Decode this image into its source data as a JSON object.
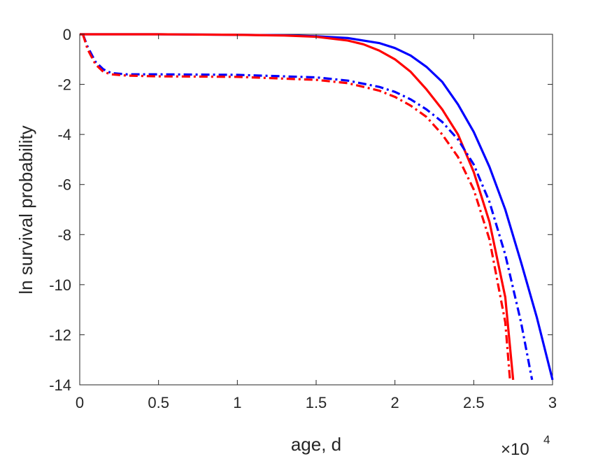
{
  "chart_data": {
    "type": "line",
    "title": "",
    "xlabel": "age, d",
    "ylabel": "ln survival probability",
    "x_multiplier_label": "×10",
    "x_multiplier_exponent": "4",
    "xlim": [
      0,
      30000
    ],
    "ylim": [
      -14,
      0
    ],
    "xticks": [
      0,
      5000,
      10000,
      15000,
      20000,
      25000,
      30000
    ],
    "xtick_labels": [
      "0",
      "0.5",
      "1",
      "1.5",
      "2",
      "2.5",
      "3"
    ],
    "yticks": [
      0,
      -2,
      -4,
      -6,
      -8,
      -10,
      -12,
      -14
    ],
    "ytick_labels": [
      "0",
      "-2",
      "-4",
      "-6",
      "-8",
      "-10",
      "-12",
      "-14"
    ],
    "grid": false,
    "series": [
      {
        "color": "#0000ff",
        "style": "solid",
        "x": [
          0,
          5000,
          10000,
          13000,
          15000,
          17000,
          19000,
          20000,
          21000,
          22000,
          23000,
          24000,
          25000,
          26000,
          27000,
          28000,
          29000,
          30000
        ],
        "y": [
          0,
          0,
          -0.02,
          -0.04,
          -0.08,
          -0.15,
          -0.35,
          -0.55,
          -0.85,
          -1.3,
          -1.9,
          -2.8,
          -3.9,
          -5.3,
          -7.0,
          -9.1,
          -11.3,
          -13.8
        ]
      },
      {
        "color": "#ff0000",
        "style": "solid",
        "x": [
          0,
          5000,
          10000,
          13000,
          15000,
          17000,
          18000,
          19000,
          20000,
          21000,
          22000,
          23000,
          24000,
          25000,
          26000,
          27000,
          27500
        ],
        "y": [
          0,
          0,
          -0.02,
          -0.05,
          -0.1,
          -0.25,
          -0.4,
          -0.65,
          -1.0,
          -1.5,
          -2.2,
          -3.0,
          -4.0,
          -5.5,
          -7.5,
          -10.5,
          -13.8
        ]
      },
      {
        "color": "#0000ff",
        "style": "dashdot",
        "x": [
          200,
          500,
          1000,
          1500,
          2000,
          3000,
          5000,
          10000,
          15000,
          17000,
          19000,
          20000,
          21000,
          22000,
          23000,
          24000,
          25000,
          26000,
          27000,
          28000,
          28700
        ],
        "y": [
          0,
          -0.5,
          -1.1,
          -1.4,
          -1.55,
          -1.6,
          -1.6,
          -1.62,
          -1.72,
          -1.85,
          -2.1,
          -2.3,
          -2.6,
          -3.0,
          -3.5,
          -4.2,
          -5.2,
          -6.7,
          -8.8,
          -11.5,
          -13.8
        ]
      },
      {
        "color": "#ff0000",
        "style": "dashdot",
        "x": [
          200,
          500,
          1000,
          1500,
          2000,
          3000,
          5000,
          10000,
          15000,
          17000,
          19000,
          20000,
          21000,
          22000,
          23000,
          24000,
          25000,
          26000,
          27000,
          27300
        ],
        "y": [
          0,
          -0.6,
          -1.2,
          -1.5,
          -1.6,
          -1.65,
          -1.68,
          -1.7,
          -1.82,
          -1.95,
          -2.25,
          -2.5,
          -2.85,
          -3.3,
          -4.0,
          -4.9,
          -6.2,
          -8.2,
          -11.5,
          -13.8
        ]
      }
    ]
  }
}
